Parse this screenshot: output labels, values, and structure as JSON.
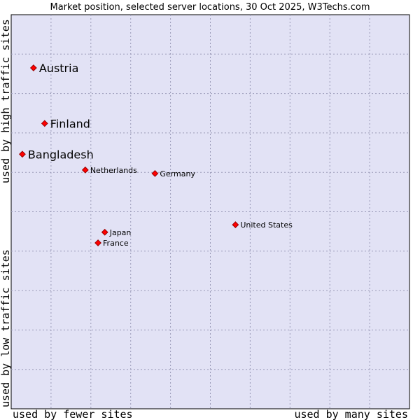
{
  "chart_data": {
    "type": "scatter",
    "title": "Market position, selected server locations, 30 Oct 2025, W3Techs.com",
    "xlabel_left": "used by fewer sites",
    "xlabel_right": "used by many sites",
    "ylabel_bottom": "used by low traffic sites",
    "ylabel_top": "used by high traffic sites",
    "grid": true,
    "xlim": [
      0,
      100
    ],
    "ylim": [
      0,
      100
    ],
    "colors": {
      "plot_background": "#e2e2f5",
      "plot_border": "#000000",
      "marker_fill": "#ff0000",
      "marker_stroke": "#990000"
    },
    "points": [
      {
        "name": "Austria",
        "x": 5.6,
        "y": 86.5,
        "label_size": "large"
      },
      {
        "name": "Finland",
        "x": 8.4,
        "y": 72.4,
        "label_size": "large"
      },
      {
        "name": "Bangladesh",
        "x": 2.8,
        "y": 64.6,
        "label_size": "large"
      },
      {
        "name": "Netherlands",
        "x": 18.6,
        "y": 60.6,
        "label_size": "small"
      },
      {
        "name": "Germany",
        "x": 36.1,
        "y": 59.7,
        "label_size": "small"
      },
      {
        "name": "United States",
        "x": 56.3,
        "y": 46.7,
        "label_size": "small"
      },
      {
        "name": "Japan",
        "x": 23.5,
        "y": 44.8,
        "label_size": "small"
      },
      {
        "name": "France",
        "x": 21.8,
        "y": 42.1,
        "label_size": "small"
      }
    ]
  }
}
